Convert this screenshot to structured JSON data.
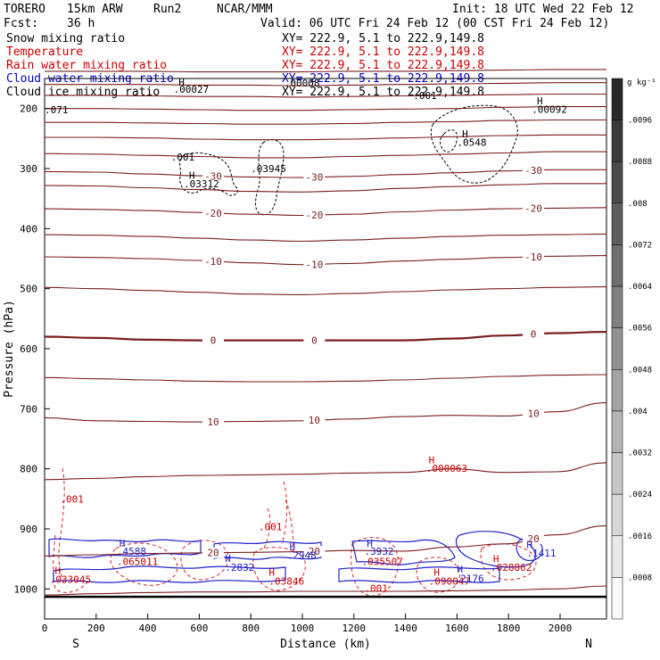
{
  "header": {
    "model": "TORERO",
    "resolution": "15km ARW",
    "run": "Run2",
    "institution": "NCAR/MMM",
    "init": "Init: 18 UTC Wed 22 Feb 12",
    "fcst_label": "Fcst:",
    "fcst_value": "36 h",
    "valid": "Valid: 06 UTC Fri 24 Feb 12 (00 CST Fri 24 Feb 12)"
  },
  "legend": [
    {
      "name": "Snow mixing ratio",
      "xy": "XY= 222.9,  5.1 to 222.9,149.8",
      "color": "#000000"
    },
    {
      "name": "Temperature",
      "xy": "XY= 222.9,  5.1 to 222.9,149.8",
      "color": "#cc0000"
    },
    {
      "name": "Rain water mixing ratio",
      "xy": "XY= 222.9,  5.1 to 222.9,149.8",
      "color": "#cc0000"
    },
    {
      "name": "Cloud water mixing ratio",
      "xy": "XY= 222.9,  5.1 to 222.9,149.8",
      "color": "#0000cc"
    },
    {
      "name": "Cloud ice mixing ratio",
      "xy": "XY= 222.9,  5.1 to 222.9,149.8",
      "color": "#000000"
    }
  ],
  "chart_data": {
    "type": "contour",
    "xlabel": "Distance (km)",
    "ylabel": "Pressure (hPa)",
    "xlim": [
      0,
      2180
    ],
    "ylim": [
      1050,
      150
    ],
    "x_ticks": [
      0,
      200,
      400,
      600,
      800,
      1000,
      1200,
      1400,
      1600,
      1800,
      2000
    ],
    "y_ticks": [
      200,
      300,
      400,
      500,
      600,
      700,
      800,
      900,
      1000
    ],
    "x_end_labels": {
      "left": "S",
      "right": "N"
    },
    "colorbar": {
      "unit": "g kg⁻¹",
      "labels": [
        ".0096",
        ".0088",
        ".008",
        ".0072",
        ".0064",
        ".0056",
        ".0048",
        ".004",
        ".0032",
        ".0024",
        ".0016",
        ".0008"
      ]
    },
    "temperature_contours": [
      {
        "value": -50,
        "label": "",
        "p": [
          138,
          138,
          138,
          139,
          139,
          139,
          138,
          138,
          137,
          136,
          135,
          135
        ]
      },
      {
        "value": -48,
        "label": "",
        "p": [
          160,
          160,
          160,
          161,
          161,
          162,
          161,
          160,
          159,
          158,
          157,
          157
        ]
      },
      {
        "value": -46,
        "label": "",
        "p": [
          178,
          178,
          179,
          180,
          180,
          181,
          180,
          179,
          178,
          177,
          176,
          176
        ]
      },
      {
        "value": -44,
        "label": "",
        "p": [
          200,
          200,
          201,
          202,
          203,
          203,
          202,
          201,
          200,
          198,
          197,
          197
        ]
      },
      {
        "value": -42,
        "label": "",
        "p": [
          223,
          223,
          224,
          225,
          226,
          226,
          225,
          223,
          222,
          220,
          219,
          219
        ]
      },
      {
        "value": -40,
        "label": "",
        "p": [
          248,
          248,
          249,
          251,
          252,
          252,
          251,
          249,
          247,
          245,
          244,
          244
        ]
      },
      {
        "value": -35,
        "label": "",
        "p": [
          275,
          276,
          278,
          280,
          282,
          282,
          280,
          278,
          276,
          274,
          272,
          272
        ]
      },
      {
        "value": -30,
        "label": "-30",
        "p": [
          305,
          306,
          309,
          312,
          314,
          315,
          313,
          310,
          307,
          304,
          302,
          302
        ]
      },
      {
        "value": -25,
        "label": "",
        "p": [
          328,
          329,
          332,
          335,
          338,
          339,
          337,
          333,
          330,
          327,
          325,
          325
        ]
      },
      {
        "value": -20,
        "label": "-20",
        "p": [
          367,
          368,
          370,
          373,
          376,
          378,
          376,
          372,
          369,
          367,
          366,
          365
        ]
      },
      {
        "value": -15,
        "label": "",
        "p": [
          410,
          411,
          413,
          416,
          419,
          421,
          419,
          416,
          413,
          411,
          410,
          409
        ]
      },
      {
        "value": -10,
        "label": "-10",
        "p": [
          447,
          448,
          450,
          453,
          457,
          460,
          458,
          454,
          451,
          448,
          446,
          445
        ]
      },
      {
        "value": -5,
        "label": "",
        "p": [
          498,
          500,
          503,
          506,
          509,
          510,
          508,
          505,
          502,
          500,
          498,
          497
        ]
      },
      {
        "value": 0,
        "label": "0",
        "p": [
          580,
          582,
          585,
          586,
          586,
          586,
          586,
          586,
          583,
          578,
          574,
          572
        ]
      },
      {
        "value": 5,
        "label": "",
        "p": [
          648,
          650,
          652,
          654,
          655,
          655,
          654,
          652,
          649,
          646,
          644,
          643
        ]
      },
      {
        "value": 10,
        "label": "10",
        "p": [
          715,
          720,
          721,
          722,
          721,
          720,
          717,
          713,
          711,
          712,
          705,
          690
        ]
      },
      {
        "value": 15,
        "label": "",
        "p": [
          818,
          816,
          813,
          811,
          810,
          809,
          807,
          806,
          800,
          806,
          805,
          790
        ]
      },
      {
        "value": 20,
        "label": "20",
        "p": [
          945,
          943,
          941,
          940,
          939,
          938,
          936,
          937,
          930,
          925,
          910,
          895
        ]
      },
      {
        "value": 22,
        "label": "",
        "p": [
          1010,
          1008,
          1006,
          1005,
          1005,
          1004,
          1004,
          1004,
          1003,
          1002,
          1000,
          995
        ]
      }
    ],
    "surface_pressure": 1013,
    "maxima_labels": [
      {
        "series": "cloud ice",
        "value": ".071",
        "x": 0,
        "p": 208
      },
      {
        "series": "cloud ice",
        "value": ".00027",
        "x": 500,
        "p": 174
      },
      {
        "series": "cloud ice",
        "value": ".00008",
        "x": 930,
        "p": 163
      },
      {
        "series": "cloud ice",
        "value": ".001",
        "x": 1430,
        "p": 184
      },
      {
        "series": "cloud ice",
        "value": ".00092",
        "x": 1890,
        "p": 207
      },
      {
        "series": "cloud ice",
        "value": ".0548",
        "x": 1600,
        "p": 262
      },
      {
        "series": "cloud ice",
        "value": ".001",
        "x": 490,
        "p": 287
      },
      {
        "series": "cloud ice",
        "value": ".03945",
        "x": 800,
        "p": 306
      },
      {
        "series": "cloud ice",
        "value": ".03312",
        "x": 540,
        "p": 331
      },
      {
        "series": "rain water",
        "value": ".000063",
        "x": 1480,
        "p": 805
      },
      {
        "series": "rain water",
        "value": ".001",
        "x": 60,
        "p": 856
      },
      {
        "series": "rain water",
        "value": ".001",
        "x": 830,
        "p": 902
      },
      {
        "series": "rain water",
        "value": ".065011",
        "x": 280,
        "p": 960
      },
      {
        "series": "rain water",
        "value": ".035507",
        "x": 1230,
        "p": 960
      },
      {
        "series": "rain water",
        "value": ".028862",
        "x": 1730,
        "p": 970
      },
      {
        "series": "rain water",
        "value": ".033045",
        "x": 20,
        "p": 990
      },
      {
        "series": "rain water",
        "value": ".03846",
        "x": 870,
        "p": 993
      },
      {
        "series": "rain water",
        "value": ".090047",
        "x": 1490,
        "p": 993
      },
      {
        "series": "rain water",
        "value": ".001",
        "x": 1240,
        "p": 1005
      },
      {
        "series": "cloud water",
        "value": ".4588",
        "x": 280,
        "p": 943
      },
      {
        "series": "cloud water",
        "value": ".3932",
        "x": 1240,
        "p": 943
      },
      {
        "series": "cloud water",
        "value": ".2948",
        "x": 940,
        "p": 950
      },
      {
        "series": "cloud water",
        "value": ".2832",
        "x": 700,
        "p": 970
      },
      {
        "series": "cloud water",
        "value": ".2176",
        "x": 1590,
        "p": 988
      },
      {
        "series": "cloud water",
        "value": ".1411",
        "x": 1870,
        "p": 946
      }
    ],
    "h_markers": [
      {
        "series": "cloud ice",
        "x": 520,
        "p": 162
      },
      {
        "series": "cloud ice",
        "x": 1910,
        "p": 193
      },
      {
        "series": "cloud ice",
        "x": 1620,
        "p": 248
      },
      {
        "series": "cloud ice",
        "x": 560,
        "p": 317
      },
      {
        "series": "rain water",
        "x": 1490,
        "p": 791
      },
      {
        "series": "rain water",
        "x": 40,
        "p": 975
      },
      {
        "series": "rain water",
        "x": 1740,
        "p": 956
      },
      {
        "series": "rain water",
        "x": 870,
        "p": 978
      },
      {
        "series": "rain water",
        "x": 1510,
        "p": 978
      },
      {
        "series": "cloud water",
        "x": 290,
        "p": 930
      },
      {
        "series": "cloud water",
        "x": 1250,
        "p": 930
      },
      {
        "series": "cloud water",
        "x": 950,
        "p": 936
      },
      {
        "series": "cloud water",
        "x": 700,
        "p": 955
      },
      {
        "series": "cloud water",
        "x": 1600,
        "p": 973
      },
      {
        "series": "cloud water",
        "x": 1870,
        "p": 932
      }
    ]
  }
}
